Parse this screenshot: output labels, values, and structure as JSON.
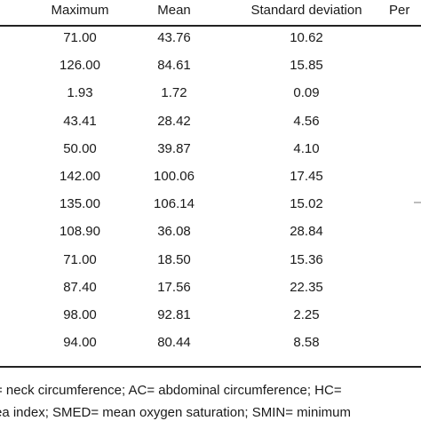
{
  "table": {
    "headers": [
      "Maximum",
      "Mean",
      "Standard deviation",
      "Per"
    ],
    "rows": [
      {
        "maximum": "71.00",
        "mean": "43.76",
        "sd": "10.62"
      },
      {
        "maximum": "126.00",
        "mean": "84.61",
        "sd": "15.85"
      },
      {
        "maximum": "1.93",
        "mean": "1.72",
        "sd": "0.09"
      },
      {
        "maximum": "43.41",
        "mean": "28.42",
        "sd": "4.56"
      },
      {
        "maximum": "50.00",
        "mean": "39.87",
        "sd": "4.10"
      },
      {
        "maximum": "142.00",
        "mean": "100.06",
        "sd": "17.45"
      },
      {
        "maximum": "135.00",
        "mean": "106.14",
        "sd": "15.02"
      },
      {
        "maximum": "108.90",
        "mean": "36.08",
        "sd": "28.84"
      },
      {
        "maximum": "71.00",
        "mean": "18.50",
        "sd": "15.36"
      },
      {
        "maximum": "87.40",
        "mean": "17.56",
        "sd": "22.35"
      },
      {
        "maximum": "98.00",
        "mean": "92.81",
        "sd": "2.25"
      },
      {
        "maximum": "94.00",
        "mean": "80.44",
        "sd": "8.58"
      }
    ]
  },
  "footnote": {
    "line1": "= neck circumference; AC= abdominal circumference; HC=",
    "line2": "ea index; SMED= mean oxygen saturation; SMIN= minimum"
  },
  "colors": {
    "text": "#1a1a1a",
    "rule": "#222222",
    "background": "#ffffff"
  }
}
